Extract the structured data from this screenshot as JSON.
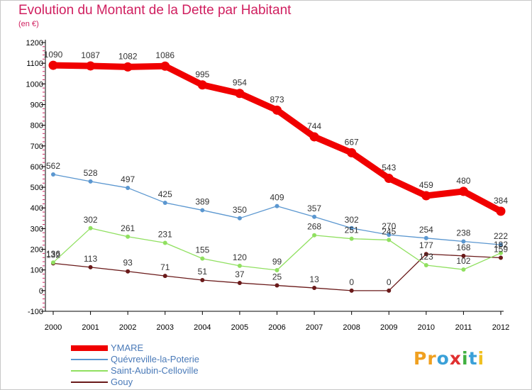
{
  "header": {
    "title": "Evolution du Montant de la Dette par Habitant",
    "subtitle": "(en €)"
  },
  "colors": {
    "title": "#d02060",
    "axis": "#000000",
    "grid_ticks": "#d02060"
  },
  "logo": {
    "text": "Proxiti",
    "letters": [
      "P",
      "r",
      "o",
      "x",
      "i",
      "t",
      "i"
    ],
    "letter_colors": [
      "#f0a020",
      "#f0a020",
      "#3aa0d8",
      "#e03030",
      "#40b040",
      "#3aa0d8",
      "#f0c020"
    ]
  },
  "chart_data": {
    "type": "line",
    "title": "Evolution du Montant de la Dette par Habitant",
    "subtitle": "(en €)",
    "xlabel": "",
    "ylabel": "",
    "x": [
      "2000",
      "2001",
      "2002",
      "2003",
      "2004",
      "2005",
      "2006",
      "2007",
      "2008",
      "2009",
      "2010",
      "2011",
      "2012"
    ],
    "ylim": [
      -100,
      1200
    ],
    "yticks": [
      -100,
      0,
      100,
      200,
      300,
      400,
      500,
      600,
      700,
      800,
      900,
      1000,
      1100,
      1200
    ],
    "legend_position": "bottom-left",
    "series": [
      {
        "name": "YMARE",
        "color": "#f00000",
        "values": [
          1090,
          1087,
          1082,
          1086,
          995,
          954,
          873,
          744,
          667,
          543,
          459,
          480,
          384
        ],
        "labels": [
          "1090",
          "1087",
          "1082",
          "1086",
          "995",
          "954",
          "873",
          "744",
          "667",
          "543",
          "459",
          "480",
          "384"
        ]
      },
      {
        "name": "Quévreville-la-Poterie",
        "color": "#5b97d0",
        "values": [
          562,
          528,
          497,
          425,
          389,
          350,
          409,
          357,
          302,
          270,
          254,
          238,
          222
        ],
        "labels": [
          "562",
          "528",
          "497",
          "425",
          "389",
          "350",
          "409",
          "357",
          "302",
          "270",
          "254",
          "238",
          "222"
        ]
      },
      {
        "name": "Saint-Aubin-Celloville",
        "color": "#90e060",
        "values": [
          136,
          302,
          261,
          231,
          155,
          120,
          99,
          268,
          251,
          245,
          123,
          102,
          182
        ],
        "labels": [
          "136",
          "302",
          "261",
          "231",
          "155",
          "120",
          "99",
          "268",
          "251",
          "245",
          "123",
          "102",
          "182"
        ]
      },
      {
        "name": "Gouy",
        "color": "#6a1a1a",
        "values": [
          132,
          113,
          93,
          71,
          51,
          37,
          25,
          13,
          0,
          0,
          177,
          168,
          159
        ],
        "labels": [
          "132",
          "113",
          "93",
          "71",
          "51",
          "37",
          "25",
          "13",
          "0",
          "0",
          "177",
          "168",
          "159"
        ]
      }
    ]
  }
}
